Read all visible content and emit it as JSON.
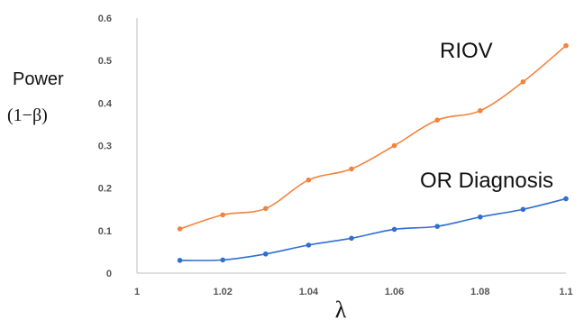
{
  "chart_data": {
    "type": "line",
    "ylabel": "Power",
    "ylabel_formula": "(1−β)",
    "xlabel": "λ",
    "xlim": [
      1,
      1.1
    ],
    "ylim": [
      0,
      0.6
    ],
    "x_ticks": [
      "1",
      "1.02",
      "1.04",
      "1.06",
      "1.08",
      "1.1"
    ],
    "y_ticks": [
      "0",
      "0.1",
      "0.2",
      "0.3",
      "0.4",
      "0.5",
      "0.6"
    ],
    "grid": false,
    "legend": "none",
    "x": [
      1.01,
      1.02,
      1.03,
      1.04,
      1.05,
      1.06,
      1.07,
      1.08,
      1.09,
      1.1
    ],
    "series": [
      {
        "name": "RIOV",
        "color": "#f4823c",
        "values": [
          0.104,
          0.137,
          0.152,
          0.219,
          0.245,
          0.3,
          0.36,
          0.382,
          0.45,
          0.535
        ]
      },
      {
        "name": "OR Diagnosis",
        "color": "#2e6fcf",
        "values": [
          0.03,
          0.031,
          0.045,
          0.066,
          0.082,
          0.103,
          0.11,
          0.132,
          0.15,
          0.175
        ]
      }
    ]
  }
}
